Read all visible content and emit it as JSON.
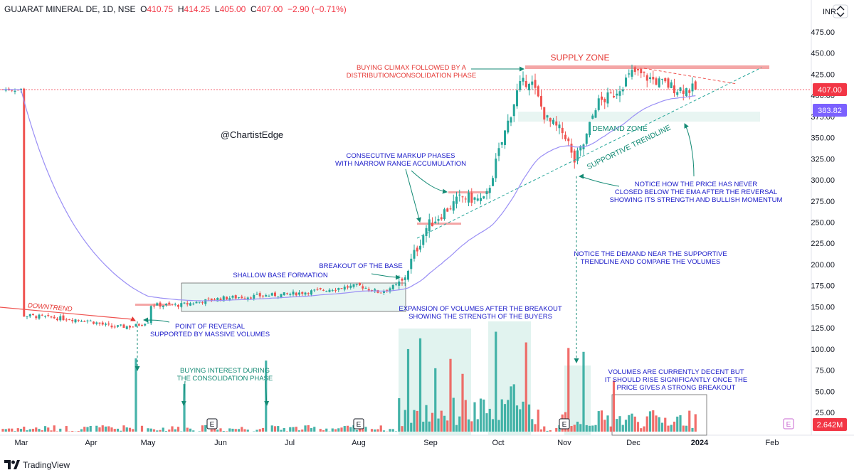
{
  "header": {
    "symbol": "GUJARAT MINERAL DE, 1D, NSE",
    "open_label": "O",
    "open": "410.75",
    "high_label": "H",
    "high": "414.25",
    "low_label": "L",
    "low": "405.00",
    "close_label": "C",
    "close": "407.00",
    "change": "−2.90 (−0.71%)"
  },
  "currency": "INR",
  "price_tag": "407.00",
  "ema_tag": "383.82",
  "volume_tag": "2.642M",
  "watermark": "@ChartistEdge",
  "footer_brand": "TradingView",
  "colors": {
    "up": "#26a69a",
    "down": "#ef5350",
    "ema": "#9a8ff5",
    "zone": "#e8f5f2",
    "annotation_blue": "#1a1ac8",
    "annotation_teal": "#138a74",
    "annotation_red": "#e53935"
  },
  "chart_data": {
    "type": "candlestick",
    "x_ticks": [
      "Mar",
      "Apr",
      "May",
      "Jun",
      "Jul",
      "Aug",
      "Sep",
      "Oct",
      "Nov",
      "Dec",
      "2024",
      "Feb"
    ],
    "price_ticks": [
      25,
      50,
      75,
      100,
      125,
      150,
      175,
      200,
      225,
      250,
      275,
      300,
      325,
      350,
      375,
      400,
      425,
      450,
      475
    ],
    "price_range": [
      0,
      490
    ],
    "volume_axis_ticks_shared": true,
    "close_path": [
      {
        "date": "Mar 1",
        "close": 140
      },
      {
        "date": "Mar 15",
        "close": 137
      },
      {
        "date": "Mar 30",
        "close": 134
      },
      {
        "date": "Apr 10",
        "close": 126
      },
      {
        "date": "Apr 20",
        "close": 127
      },
      {
        "date": "Apr 27",
        "close": 134
      },
      {
        "date": "May 1",
        "close": 152
      },
      {
        "date": "May 15",
        "close": 152
      },
      {
        "date": "Jun 1",
        "close": 160
      },
      {
        "date": "Jul 1",
        "close": 165
      },
      {
        "date": "Aug 1",
        "close": 175
      },
      {
        "date": "Aug 10",
        "close": 167
      },
      {
        "date": "Aug 20",
        "close": 178
      },
      {
        "date": "Aug 25",
        "close": 210
      },
      {
        "date": "Aug 31",
        "close": 245
      },
      {
        "date": "Sep 8",
        "close": 265
      },
      {
        "date": "Sep 15",
        "close": 280
      },
      {
        "date": "Sep 25",
        "close": 275
      },
      {
        "date": "Oct 1",
        "close": 330
      },
      {
        "date": "Oct 10",
        "close": 410
      },
      {
        "date": "Oct 15",
        "close": 420
      },
      {
        "date": "Oct 22",
        "close": 372
      },
      {
        "date": "Oct 31",
        "close": 352
      },
      {
        "date": "Nov 5",
        "close": 320
      },
      {
        "date": "Nov 10",
        "close": 345
      },
      {
        "date": "Nov 15",
        "close": 390
      },
      {
        "date": "Nov 22",
        "close": 400
      },
      {
        "date": "Dec 1",
        "close": 428
      },
      {
        "date": "Dec 10",
        "close": 418
      },
      {
        "date": "Dec 20",
        "close": 408
      },
      {
        "date": "Dec 29",
        "close": 407
      }
    ],
    "ema_last": 383.82,
    "annotations": [
      "DOWNTREND",
      "POINT OF REVERSAL\nSUPPORTED BY MASSIVE VOLUMES",
      "SHALLOW BASE FORMATION",
      "BREAKOUT OF THE BASE",
      "EXPANSION OF VOLUMES AFTER THE BREAKOUT\nSHOWING THE STRENGTH OF THE BUYERS",
      "BUYING INTEREST DURING\nTHE CONSOLIDATION PHASE",
      "CONSECUTIVE MARKUP PHASES\nWITH NARROW RANGE ACCUMULATION",
      "BUYING CLIMAX FOLLOWED BY A\nDISTRIBUTION/CONSOLIDATION PHASE",
      "SUPPLY ZONE",
      "DEMAND ZONE",
      "SUPPORTIVE TRENDLINE",
      "NOTICE HOW THE PRICE HAS NEVER\nCLOSED BELOW THE EMA AFTER THE REVERSAL\nSHOWING ITS STRENGTH AND BULLISH MOMENTUM",
      "NOTICE THE DEMAND NEAR THE SUPPORTIVE\nTRENDLINE AND COMPARE THE VOLUMES",
      "VOLUMES ARE CURRENTLY DECENT BUT\nIT SHOULD RISE SIGNIFICANTLY ONCE THE\nPRICE GIVES A STRONG BREAKOUT"
    ],
    "earnings_markers": [
      "E",
      "E",
      "E",
      "E"
    ]
  }
}
